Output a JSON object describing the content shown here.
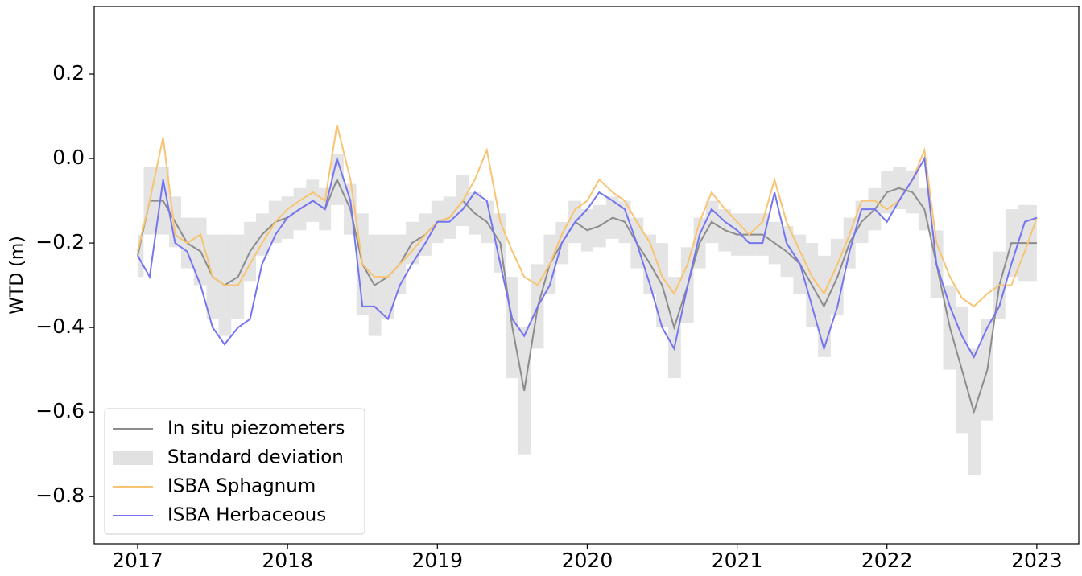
{
  "chart_data": {
    "type": "line",
    "ylabel": "WTD (m)",
    "x": [
      2017,
      2017.08,
      2017.17,
      2017.25,
      2017.33,
      2017.42,
      2017.5,
      2017.58,
      2017.67,
      2017.75,
      2017.83,
      2017.92,
      2018,
      2018.08,
      2018.17,
      2018.25,
      2018.33,
      2018.42,
      2018.5,
      2018.58,
      2018.67,
      2018.75,
      2018.83,
      2018.92,
      2019,
      2019.08,
      2019.17,
      2019.25,
      2019.33,
      2019.42,
      2019.5,
      2019.58,
      2019.67,
      2019.75,
      2019.83,
      2019.92,
      2020,
      2020.08,
      2020.17,
      2020.25,
      2020.33,
      2020.42,
      2020.5,
      2020.58,
      2020.67,
      2020.75,
      2020.83,
      2020.92,
      2021,
      2021.08,
      2021.17,
      2021.25,
      2021.33,
      2021.42,
      2021.5,
      2021.58,
      2021.67,
      2021.75,
      2021.83,
      2021.92,
      2022,
      2022.08,
      2022.17,
      2022.25,
      2022.33,
      2022.42,
      2022.5,
      2022.58,
      2022.67,
      2022.75,
      2022.83,
      2022.92,
      2023
    ],
    "series": [
      {
        "name": "In situ piezometers",
        "color": "#8c8c8c",
        "values": [
          -0.23,
          -0.1,
          -0.1,
          -0.15,
          -0.2,
          -0.22,
          -0.28,
          -0.3,
          -0.28,
          -0.22,
          -0.18,
          -0.15,
          -0.14,
          -0.12,
          -0.1,
          -0.12,
          -0.05,
          -0.12,
          -0.25,
          -0.3,
          -0.28,
          -0.25,
          -0.2,
          -0.18,
          -0.15,
          -0.14,
          -0.1,
          -0.13,
          -0.15,
          -0.2,
          -0.4,
          -0.55,
          -0.35,
          -0.25,
          -0.2,
          -0.15,
          -0.17,
          -0.16,
          -0.14,
          -0.15,
          -0.2,
          -0.25,
          -0.3,
          -0.4,
          -0.3,
          -0.2,
          -0.15,
          -0.17,
          -0.18,
          -0.18,
          -0.18,
          -0.2,
          -0.22,
          -0.25,
          -0.3,
          -0.35,
          -0.28,
          -0.2,
          -0.15,
          -0.12,
          -0.08,
          -0.07,
          -0.08,
          -0.12,
          -0.25,
          -0.4,
          -0.5,
          -0.6,
          -0.5,
          -0.3,
          -0.2,
          -0.2,
          -0.2
        ]
      },
      {
        "name": "Standard deviation",
        "color": "#d9d9d9",
        "values": [
          0.05,
          0.08,
          0.08,
          0.06,
          0.06,
          0.08,
          0.1,
          0.12,
          0.1,
          0.07,
          0.05,
          0.05,
          0.05,
          0.05,
          0.05,
          0.05,
          0.06,
          0.06,
          0.12,
          0.12,
          0.1,
          0.07,
          0.05,
          0.05,
          0.05,
          0.05,
          0.06,
          0.05,
          0.05,
          0.07,
          0.12,
          0.15,
          0.1,
          0.07,
          0.05,
          0.05,
          0.05,
          0.05,
          0.05,
          0.05,
          0.06,
          0.07,
          0.1,
          0.12,
          0.09,
          0.06,
          0.05,
          0.05,
          0.05,
          0.05,
          0.05,
          0.05,
          0.06,
          0.07,
          0.1,
          0.12,
          0.09,
          0.06,
          0.05,
          0.05,
          0.05,
          0.05,
          0.05,
          0.05,
          0.08,
          0.1,
          0.15,
          0.15,
          0.12,
          0.08,
          0.08,
          0.09,
          0.09
        ]
      },
      {
        "name": "ISBA Sphagnum",
        "color": "#f8c471",
        "values": [
          -0.22,
          -0.1,
          0.05,
          -0.18,
          -0.2,
          -0.18,
          -0.28,
          -0.3,
          -0.3,
          -0.25,
          -0.2,
          -0.15,
          -0.12,
          -0.1,
          -0.08,
          -0.1,
          0.08,
          -0.05,
          -0.25,
          -0.28,
          -0.28,
          -0.25,
          -0.22,
          -0.18,
          -0.15,
          -0.14,
          -0.1,
          -0.05,
          0.02,
          -0.15,
          -0.22,
          -0.28,
          -0.3,
          -0.25,
          -0.18,
          -0.12,
          -0.1,
          -0.05,
          -0.08,
          -0.1,
          -0.15,
          -0.2,
          -0.28,
          -0.32,
          -0.25,
          -0.15,
          -0.08,
          -0.12,
          -0.15,
          -0.18,
          -0.15,
          -0.05,
          -0.15,
          -0.22,
          -0.28,
          -0.32,
          -0.25,
          -0.18,
          -0.1,
          -0.1,
          -0.12,
          -0.1,
          -0.05,
          0.02,
          -0.2,
          -0.28,
          -0.33,
          -0.35,
          -0.32,
          -0.3,
          -0.3,
          -0.22,
          -0.14
        ]
      },
      {
        "name": "ISBA Herbaceous",
        "color": "#7575f0",
        "values": [
          -0.23,
          -0.28,
          -0.05,
          -0.2,
          -0.22,
          -0.3,
          -0.4,
          -0.44,
          -0.4,
          -0.38,
          -0.25,
          -0.18,
          -0.14,
          -0.12,
          -0.1,
          -0.12,
          0.0,
          -0.1,
          -0.35,
          -0.35,
          -0.38,
          -0.3,
          -0.25,
          -0.2,
          -0.15,
          -0.15,
          -0.12,
          -0.08,
          -0.1,
          -0.25,
          -0.38,
          -0.42,
          -0.35,
          -0.3,
          -0.2,
          -0.15,
          -0.12,
          -0.08,
          -0.1,
          -0.12,
          -0.2,
          -0.3,
          -0.4,
          -0.45,
          -0.3,
          -0.18,
          -0.12,
          -0.15,
          -0.17,
          -0.2,
          -0.2,
          -0.08,
          -0.2,
          -0.25,
          -0.35,
          -0.45,
          -0.35,
          -0.22,
          -0.12,
          -0.12,
          -0.15,
          -0.1,
          -0.05,
          0.0,
          -0.25,
          -0.35,
          -0.42,
          -0.47,
          -0.4,
          -0.35,
          -0.25,
          -0.15,
          -0.14
        ]
      }
    ],
    "xlim": [
      2016.71,
      2023.28
    ],
    "xticks": [
      2017,
      2018,
      2019,
      2020,
      2021,
      2022,
      2023
    ],
    "ylim": [
      -0.912,
      0.36
    ],
    "yticks": [
      {
        "value": -0.8,
        "label": "−0.8"
      },
      {
        "value": -0.6,
        "label": "−0.6"
      },
      {
        "value": -0.4,
        "label": "−0.4"
      },
      {
        "value": -0.2,
        "label": "−0.2"
      },
      {
        "value": 0,
        "label": "0.0"
      },
      0.2
    ],
    "legend": "lower left",
    "grid": false
  }
}
